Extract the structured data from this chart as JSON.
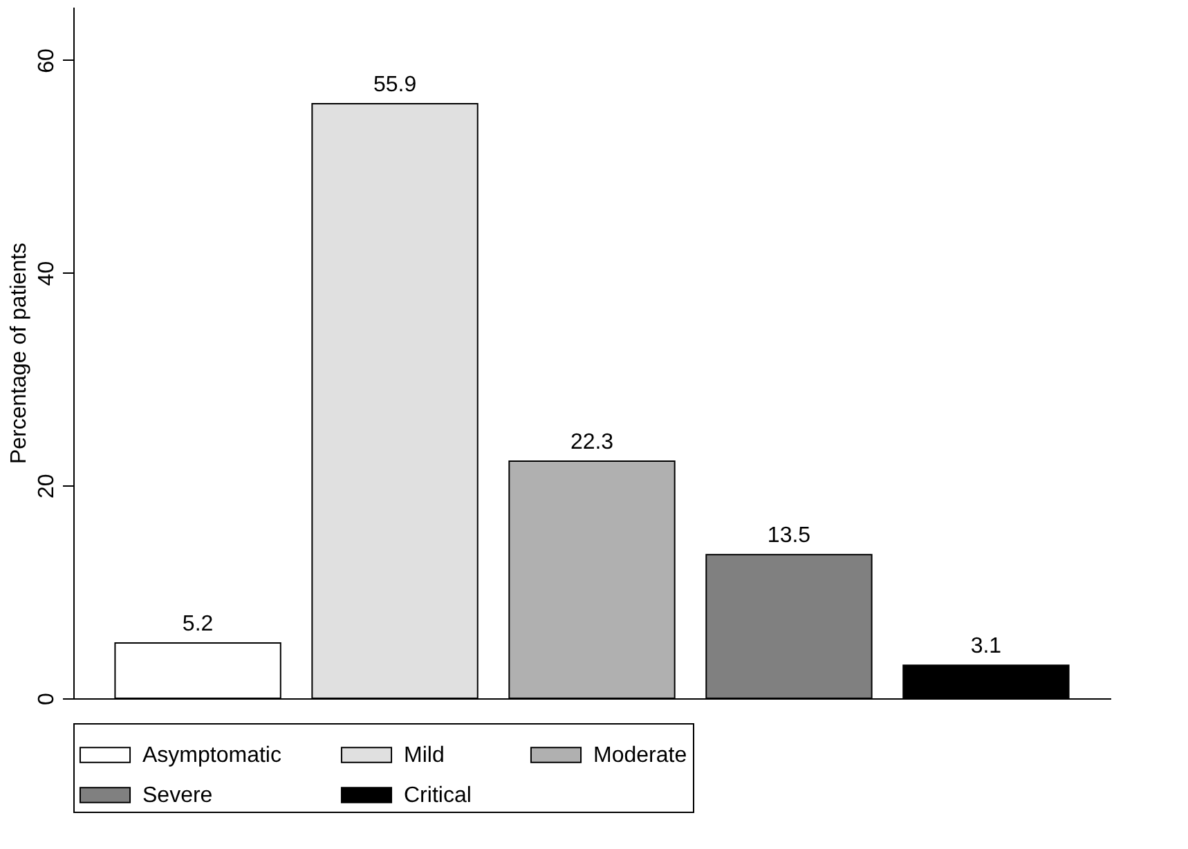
{
  "chart_data": {
    "type": "bar",
    "ylabel": "Percentage of patients",
    "categories": [
      null
    ],
    "series": [
      {
        "name": "Asymptomatic",
        "color": "#ffffff",
        "values": [
          5.2
        ]
      },
      {
        "name": "Mild",
        "color": "#e0e0e0",
        "values": [
          55.9
        ]
      },
      {
        "name": "Moderate",
        "color": "#b0b0b0",
        "values": [
          22.3
        ]
      },
      {
        "name": "Severe",
        "color": "#808080",
        "values": [
          13.5
        ]
      },
      {
        "name": "Critical",
        "color": "#000000",
        "values": [
          3.1
        ]
      }
    ],
    "ylim": [
      0,
      65
    ],
    "yticks": [
      0,
      20,
      40,
      60
    ],
    "grid": false,
    "legend": "bottom",
    "tick_labels": "y",
    "data_labels": true
  }
}
